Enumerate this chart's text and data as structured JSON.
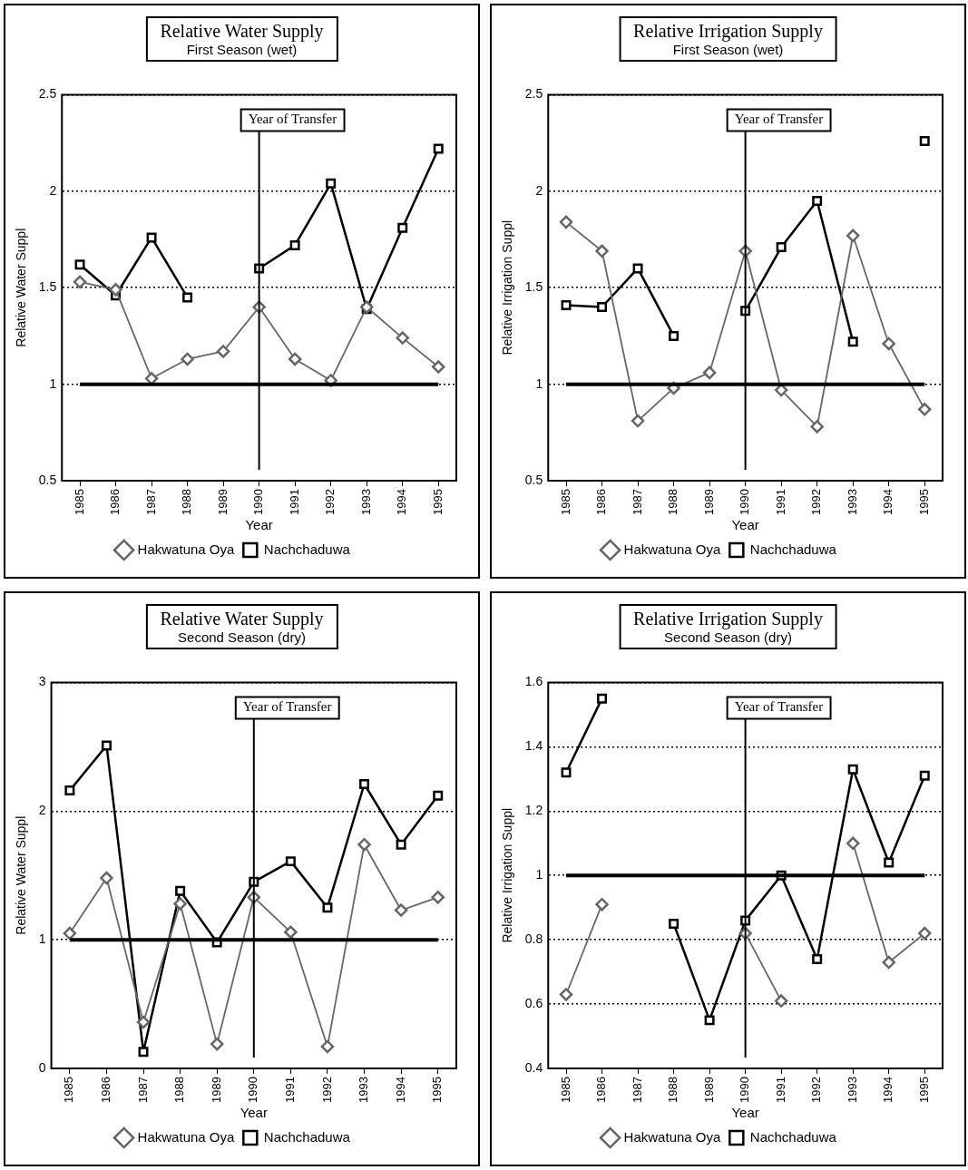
{
  "chart_data": [
    {
      "type": "line",
      "title": "Relative Water Supply",
      "subtitle": "First Season (wet)",
      "xlabel": "Year",
      "ylabel": "Relative Water Suppl",
      "categories": [
        "1985",
        "1986",
        "1987",
        "1988",
        "1989",
        "1990",
        "1991",
        "1992",
        "1993",
        "1994",
        "1995"
      ],
      "series": [
        {
          "name": "Nachchaduwa",
          "color": "#000000",
          "marker": "square",
          "values": [
            1.62,
            1.46,
            1.76,
            1.45,
            null,
            1.6,
            1.72,
            2.04,
            1.39,
            1.81,
            2.22
          ]
        },
        {
          "name": "Hakwatuna Oya",
          "color": "#666666",
          "marker": "diamond",
          "values": [
            1.53,
            1.49,
            1.03,
            1.13,
            1.17,
            1.4,
            1.13,
            1.02,
            1.4,
            1.24,
            1.09
          ]
        }
      ],
      "ylim": [
        0.5,
        2.5
      ],
      "yticks": [
        0.5,
        1,
        1.5,
        2,
        2.5
      ],
      "grid": "y",
      "legend": "bottom",
      "ref_lines": [
        {
          "axis": "y",
          "value": 1,
          "color": "#000000"
        },
        {
          "axis": "x",
          "value": "1990",
          "label": "Year of Transfer",
          "color": "#000000"
        }
      ]
    },
    {
      "type": "line",
      "title": "Relative Irrigation Supply",
      "subtitle": "First Season (wet)",
      "xlabel": "Year",
      "ylabel": "Relative Irrigation Suppl",
      "categories": [
        "1985",
        "1986",
        "1987",
        "1988",
        "1989",
        "1990",
        "1991",
        "1992",
        "1993",
        "1994",
        "1995"
      ],
      "series": [
        {
          "name": "Nachchaduwa",
          "color": "#000000",
          "marker": "square",
          "values": [
            1.41,
            1.4,
            1.6,
            1.25,
            null,
            1.38,
            1.71,
            1.95,
            1.22,
            null,
            2.26
          ]
        },
        {
          "name": "Hakwatuna Oya",
          "color": "#666666",
          "marker": "diamond",
          "values": [
            1.84,
            1.69,
            0.81,
            0.98,
            1.06,
            1.69,
            0.97,
            0.78,
            1.77,
            1.21,
            0.87
          ]
        }
      ],
      "ylim": [
        0.5,
        2.5
      ],
      "yticks": [
        0.5,
        1,
        1.5,
        2,
        2.5
      ],
      "grid": "y",
      "legend": "bottom",
      "ref_lines": [
        {
          "axis": "y",
          "value": 1,
          "color": "#000000"
        },
        {
          "axis": "x",
          "value": "1990",
          "label": "Year of Transfer",
          "color": "#000000"
        }
      ]
    },
    {
      "type": "line",
      "title": "Relative Water Supply",
      "subtitle": "Second Season (dry)",
      "xlabel": "Year",
      "ylabel": "Relative Water Suppl",
      "categories": [
        "1985",
        "1986",
        "1987",
        "1988",
        "1989",
        "1990",
        "1991",
        "1992",
        "1993",
        "1994",
        "1995"
      ],
      "series": [
        {
          "name": "Nachchaduwa",
          "color": "#000000",
          "marker": "square",
          "values": [
            2.16,
            2.51,
            0.13,
            1.38,
            0.98,
            1.45,
            1.61,
            1.25,
            2.21,
            1.74,
            2.12
          ]
        },
        {
          "name": "Hakwatuna Oya",
          "color": "#666666",
          "marker": "diamond",
          "values": [
            1.05,
            1.48,
            0.36,
            1.28,
            0.19,
            1.33,
            1.06,
            0.17,
            1.74,
            1.23,
            1.33
          ]
        }
      ],
      "ylim": [
        0,
        3
      ],
      "yticks": [
        0,
        1,
        2,
        3
      ],
      "grid": "y",
      "legend": "bottom",
      "ref_lines": [
        {
          "axis": "y",
          "value": 1,
          "color": "#000000"
        },
        {
          "axis": "x",
          "value": "1990",
          "label": "Year of Transfer",
          "color": "#000000"
        }
      ]
    },
    {
      "type": "line",
      "title": "Relative Irrigation Supply",
      "subtitle": "Second Season (dry)",
      "xlabel": "Year",
      "ylabel": "Relative Irrigation Suppl",
      "categories": [
        "1985",
        "1986",
        "1987",
        "1988",
        "1989",
        "1990",
        "1991",
        "1992",
        "1993",
        "1994",
        "1995"
      ],
      "series": [
        {
          "name": "Nachchaduwa",
          "color": "#000000",
          "marker": "square",
          "values": [
            1.32,
            1.55,
            null,
            0.85,
            0.55,
            0.86,
            1.0,
            0.74,
            1.33,
            1.04,
            1.31
          ]
        },
        {
          "name": "Hakwatuna Oya",
          "color": "#666666",
          "marker": "diamond",
          "values": [
            0.63,
            0.91,
            null,
            null,
            null,
            0.82,
            0.61,
            null,
            1.1,
            0.73,
            0.82
          ]
        }
      ],
      "ylim": [
        0.4,
        1.6
      ],
      "yticks": [
        0.4,
        0.6,
        0.8,
        1,
        1.2,
        1.4,
        1.6
      ],
      "grid": "y",
      "legend": "bottom",
      "ref_lines": [
        {
          "axis": "y",
          "value": 1,
          "color": "#000000"
        },
        {
          "axis": "x",
          "value": "1990",
          "label": "Year of Transfer",
          "color": "#000000"
        }
      ]
    }
  ]
}
